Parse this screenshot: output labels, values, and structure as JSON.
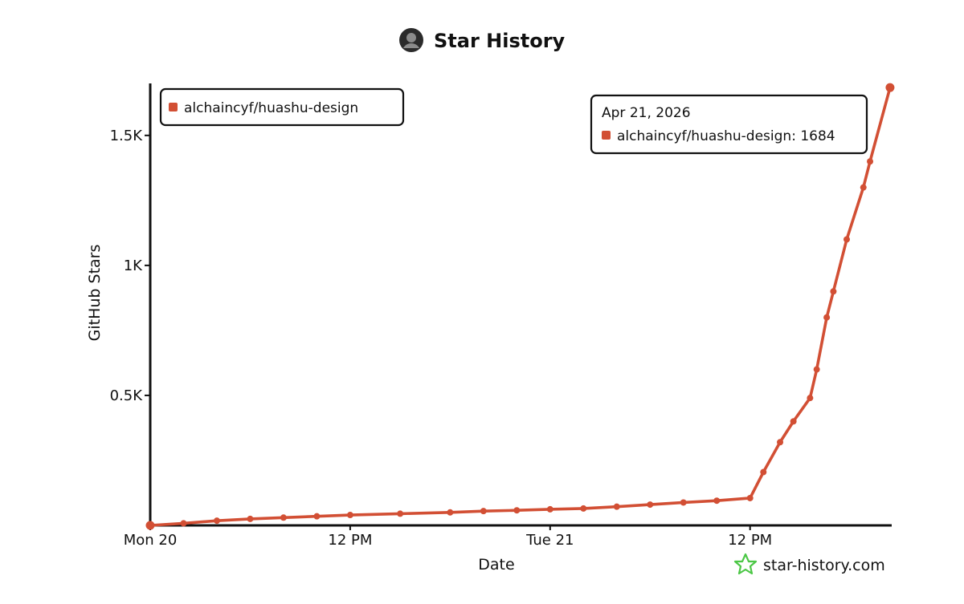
{
  "header": {
    "title": "Star History",
    "avatar_icon": "avatar-icon"
  },
  "footer": {
    "site": "star-history.com",
    "logo_icon": "star-logo-icon",
    "logo_color": "#4cc746"
  },
  "tooltip": {
    "date": "Apr 21, 2026",
    "entry": "alchaincyf/huashu-design: 1684"
  },
  "chart_data": {
    "type": "line",
    "title": "Star History",
    "xlabel": "Date",
    "ylabel": "GitHub Stars",
    "x_ticks": [
      {
        "label": "Mon 20",
        "hours": 0
      },
      {
        "label": "12 PM",
        "hours": 12
      },
      {
        "label": "Tue 21",
        "hours": 24
      },
      {
        "label": "12 PM",
        "hours": 36
      }
    ],
    "y_ticks": [
      {
        "label": "0.5K",
        "value": 500
      },
      {
        "label": "1K",
        "value": 1000
      },
      {
        "label": "1.5K",
        "value": 1500
      }
    ],
    "xlim_hours": [
      0,
      44.5
    ],
    "ylim": [
      0,
      1700
    ],
    "grid": false,
    "legend_position": "top-left",
    "series": [
      {
        "name": "alchaincyf/huashu-design",
        "color": "#d24f34",
        "points": [
          {
            "hours": 0,
            "value": 0
          },
          {
            "hours": 2,
            "value": 8
          },
          {
            "hours": 4,
            "value": 18
          },
          {
            "hours": 6,
            "value": 25
          },
          {
            "hours": 8,
            "value": 30
          },
          {
            "hours": 10,
            "value": 35
          },
          {
            "hours": 12,
            "value": 40
          },
          {
            "hours": 15,
            "value": 45
          },
          {
            "hours": 18,
            "value": 50
          },
          {
            "hours": 20,
            "value": 55
          },
          {
            "hours": 22,
            "value": 58
          },
          {
            "hours": 24,
            "value": 62
          },
          {
            "hours": 26,
            "value": 65
          },
          {
            "hours": 28,
            "value": 72
          },
          {
            "hours": 30,
            "value": 80
          },
          {
            "hours": 32,
            "value": 88
          },
          {
            "hours": 34,
            "value": 95
          },
          {
            "hours": 36,
            "value": 105
          },
          {
            "hours": 36.8,
            "value": 205
          },
          {
            "hours": 37.8,
            "value": 320
          },
          {
            "hours": 38.6,
            "value": 400
          },
          {
            "hours": 39.6,
            "value": 490
          },
          {
            "hours": 40,
            "value": 600
          },
          {
            "hours": 40.6,
            "value": 800
          },
          {
            "hours": 41,
            "value": 900
          },
          {
            "hours": 41.8,
            "value": 1100
          },
          {
            "hours": 42.8,
            "value": 1300
          },
          {
            "hours": 43.2,
            "value": 1400
          },
          {
            "hours": 44.4,
            "value": 1684
          }
        ]
      }
    ]
  }
}
